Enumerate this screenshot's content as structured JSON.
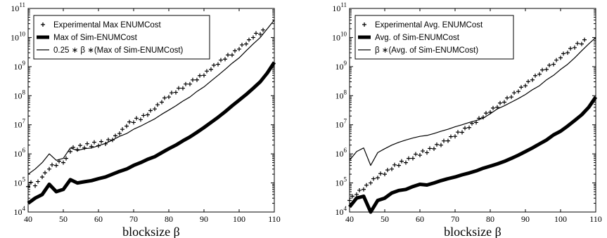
{
  "charts": [
    {
      "type": "line",
      "xlabel": "blocksize β",
      "yscale": "log",
      "xlim": [
        40,
        110
      ],
      "ylim_exp": [
        4,
        11
      ],
      "xticks": [
        "40",
        "50",
        "60",
        "70",
        "80",
        "90",
        "100",
        "110"
      ],
      "yticks": [
        {
          "base": "10",
          "exp": "4"
        },
        {
          "base": "10",
          "exp": "5"
        },
        {
          "base": "10",
          "exp": "6"
        },
        {
          "base": "10",
          "exp": "7"
        },
        {
          "base": "10",
          "exp": "8"
        },
        {
          "base": "10",
          "exp": "9"
        },
        {
          "base": "10",
          "exp": "10"
        },
        {
          "base": "10",
          "exp": "11"
        }
      ],
      "legend_position": "top-left",
      "legend": [
        {
          "label": "Experimental Max ENUMCost",
          "style": "plus"
        },
        {
          "label": "Max of Sim-ENUMCost",
          "style": "thick"
        },
        {
          "label": "0.25 ∗ β ∗(Max of Sim-ENUMCost)",
          "style": "thin"
        }
      ],
      "chart_data": {
        "type": "line",
        "x": [
          40,
          42,
          44,
          46,
          48,
          50,
          52,
          54,
          56,
          58,
          60,
          62,
          64,
          66,
          68,
          70,
          72,
          74,
          76,
          78,
          80,
          82,
          84,
          86,
          88,
          90,
          92,
          94,
          96,
          98,
          100,
          102,
          104,
          106,
          108,
          110
        ],
        "series": [
          {
            "name": "Experimental Max ENUMCost",
            "style": "plus",
            "y": [
              75000.0,
              80000.0,
              160000.0,
              300000.0,
              400000.0,
              500000.0,
              1200000.0,
              1400000.0,
              1600000.0,
              1800000.0,
              1900000.0,
              2200000.0,
              3000000.0,
              5000000.0,
              9000000.0,
              12000000.0,
              15000000.0,
              22000000.0,
              35000000.0,
              60000000.0,
              90000000.0,
              130000000.0,
              180000000.0,
              250000000.0,
              350000000.0,
              500000000.0,
              800000000.0,
              1200000000.0,
              1800000000.0,
              2500000000.0,
              4000000000.0,
              6000000000.0,
              10000000000.0,
              13000000000.0,
              null,
              null
            ]
          },
          {
            "name": "Max of Sim-ENUMCost",
            "style": "thick",
            "y": [
              20000.0,
              30000.0,
              40000.0,
              90000.0,
              50000.0,
              60000.0,
              130000.0,
              100000.0,
              110000.0,
              120000.0,
              140000.0,
              160000.0,
              200000.0,
              250000.0,
              300000.0,
              400000.0,
              500000.0,
              650000.0,
              800000.0,
              1100000.0,
              1500000.0,
              2000000.0,
              2800000.0,
              3800000.0,
              5500000.0,
              8000000.0,
              12000000.0,
              18000000.0,
              28000000.0,
              45000000.0,
              70000000.0,
              110000000.0,
              180000000.0,
              300000000.0,
              600000000.0,
              1400000000.0
            ]
          },
          {
            "name": "0.25 ∗ β ∗(Max of Sim-ENUMCost)",
            "style": "thin",
            "y": [
              200000.0,
              300000.0,
              500000.0,
              1000000.0,
              600000.0,
              700000.0,
              1600000.0,
              1300000.0,
              1500000.0,
              1600000.0,
              1900000.0,
              2300000.0,
              3000000.0,
              4000000.0,
              5000000.0,
              7000000.0,
              9000000.0,
              12000000.0,
              16000000.0,
              23000000.0,
              32000000.0,
              45000000.0,
              65000000.0,
              90000000.0,
              140000000.0,
              200000000.0,
              320000000.0,
              500000000.0,
              800000000.0,
              1300000000.0,
              2000000000.0,
              3500000000.0,
              6000000000.0,
              10000000000.0,
              20000000000.0,
              40000000000.0
            ]
          }
        ]
      }
    },
    {
      "type": "line",
      "xlabel": "blocksize β",
      "yscale": "log",
      "xlim": [
        40,
        110
      ],
      "ylim_exp": [
        4,
        11
      ],
      "xticks": [
        "40",
        "50",
        "60",
        "70",
        "80",
        "90",
        "100",
        "110"
      ],
      "yticks": [
        {
          "base": "10",
          "exp": "4"
        },
        {
          "base": "10",
          "exp": "5"
        },
        {
          "base": "10",
          "exp": "6"
        },
        {
          "base": "10",
          "exp": "7"
        },
        {
          "base": "10",
          "exp": "8"
        },
        {
          "base": "10",
          "exp": "9"
        },
        {
          "base": "10",
          "exp": "10"
        },
        {
          "base": "10",
          "exp": "11"
        }
      ],
      "legend_position": "top-left",
      "legend": [
        {
          "label": "Experimental Avg. ENUMCost",
          "style": "plus"
        },
        {
          "label": "Avg. of Sim-ENUMCost",
          "style": "thick"
        },
        {
          "label": "β ∗(Avg. of Sim-ENUMCost)",
          "style": "thin"
        }
      ],
      "chart_data": {
        "type": "line",
        "x": [
          40,
          42,
          44,
          46,
          48,
          50,
          52,
          54,
          56,
          58,
          60,
          62,
          64,
          66,
          68,
          70,
          72,
          74,
          76,
          78,
          80,
          82,
          84,
          86,
          88,
          90,
          92,
          94,
          96,
          98,
          100,
          102,
          104,
          106,
          108,
          110
        ],
        "series": [
          {
            "name": "Experimental Avg. ENUMCost",
            "style": "plus",
            "y": [
              25000.0,
              40000.0,
              60000.0,
              100000.0,
              150000.0,
              200000.0,
              300000.0,
              400000.0,
              500000.0,
              700000.0,
              900000.0,
              1100000.0,
              1500000.0,
              2000000.0,
              2800000.0,
              4000000.0,
              5500000.0,
              8000000.0,
              12000000.0,
              18000000.0,
              27000000.0,
              40000000.0,
              60000000.0,
              90000000.0,
              140000000.0,
              220000000.0,
              350000000.0,
              550000000.0,
              800000000.0,
              1200000000.0,
              2000000000.0,
              3000000000.0,
              4500000000.0,
              6000000000.0,
              null,
              null
            ]
          },
          {
            "name": "Avg. of Sim-ENUMCost",
            "style": "thick",
            "y": [
              15000.0,
              30000.0,
              35000.0,
              10000.0,
              25000.0,
              30000.0,
              45000.0,
              55000.0,
              60000.0,
              75000.0,
              90000.0,
              85000.0,
              100000.0,
              120000.0,
              140000.0,
              160000.0,
              190000.0,
              220000.0,
              260000.0,
              320000.0,
              380000.0,
              450000.0,
              550000.0,
              700000.0,
              900000.0,
              1200000.0,
              1600000.0,
              2200000.0,
              3000000.0,
              4500000.0,
              6000000.0,
              9000000.0,
              14000000.0,
              22000000.0,
              40000000.0,
              90000000.0
            ]
          },
          {
            "name": "β ∗(Avg. of Sim-ENUMCost)",
            "style": "thin",
            "y": [
              600000.0,
              1200000.0,
              1600000.0,
              400000.0,
              1100000.0,
              1500000.0,
              2000000.0,
              2500000.0,
              3000000.0,
              3500000.0,
              4000000.0,
              4300000.0,
              5000000.0,
              6000000.0,
              7000000.0,
              8500000.0,
              10000000.0,
              12000000.0,
              14000000.0,
              17000000.0,
              24000000.0,
              35000000.0,
              45000000.0,
              60000000.0,
              80000000.0,
              110000000.0,
              160000000.0,
              220000000.0,
              350000000.0,
              500000000.0,
              800000000.0,
              1200000000.0,
              2000000000.0,
              3500000000.0,
              6000000000.0,
              10000000000.0
            ]
          }
        ]
      }
    }
  ]
}
